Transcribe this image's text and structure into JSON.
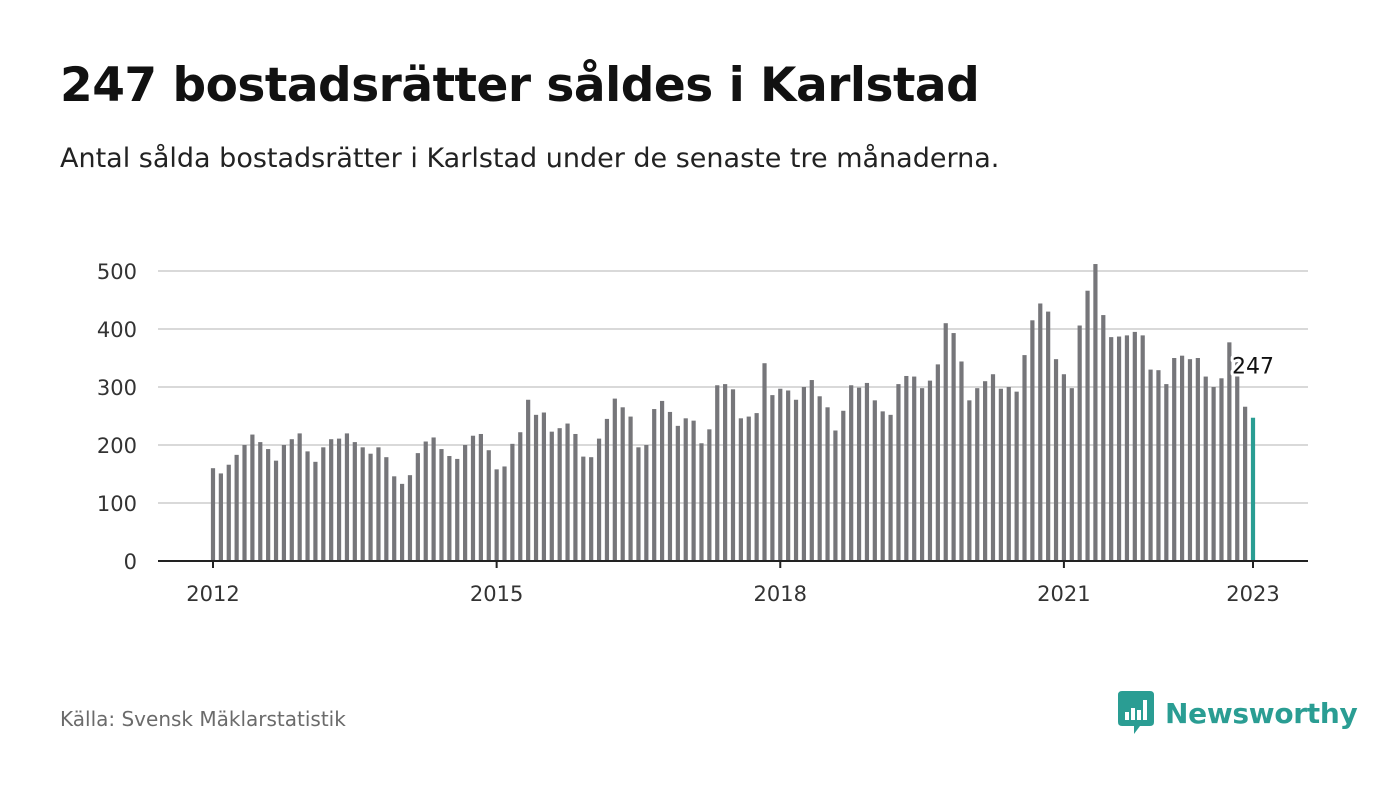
{
  "header": {
    "title": "247 bostadsrätter såldes i Karlstad",
    "subtitle": "Antal sålda bostadsrätter i Karlstad under de senaste tre månaderna."
  },
  "footer": {
    "source": "Källa: Svensk Mäklarstatistik",
    "brand": "Newsworthy",
    "brand_icon": "bar-chart-speech-bubble-icon"
  },
  "colors": {
    "bar": "#76767a",
    "highlight": "#2a9d93",
    "grid": "#d9d9d9",
    "axis": "#222222",
    "brand": "#2a9d93"
  },
  "chart_data": {
    "type": "bar",
    "x_start": "2012-01",
    "x_end": "2023-01",
    "frequency": "monthly",
    "ylim": [
      0,
      500
    ],
    "yticks": [
      0,
      100,
      200,
      300,
      400,
      500
    ],
    "xticks": [
      "2012",
      "2015",
      "2018",
      "2021",
      "2023"
    ],
    "grid": true,
    "highlight_last": true,
    "last_label": "247",
    "values": [
      160,
      151,
      166,
      183,
      200,
      218,
      205,
      193,
      173,
      200,
      210,
      220,
      189,
      171,
      196,
      210,
      211,
      220,
      205,
      196,
      185,
      196,
      179,
      146,
      133,
      148,
      186,
      206,
      213,
      193,
      181,
      176,
      200,
      216,
      219,
      191,
      158,
      163,
      202,
      222,
      278,
      252,
      256,
      223,
      229,
      237,
      219,
      180,
      179,
      211,
      245,
      280,
      265,
      249,
      196,
      200,
      262,
      276,
      257,
      233,
      246,
      242,
      203,
      227,
      303,
      305,
      296,
      246,
      249,
      255,
      341,
      286,
      297,
      294,
      278,
      300,
      312,
      284,
      265,
      225,
      259,
      303,
      299,
      307,
      277,
      258,
      252,
      305,
      319,
      318,
      298,
      311,
      339,
      410,
      393,
      344,
      277,
      298,
      310,
      322,
      297,
      300,
      292,
      355,
      415,
      444,
      430,
      348,
      322,
      298,
      406,
      466,
      512,
      424,
      386,
      387,
      389,
      395,
      389,
      330,
      329,
      305,
      350,
      354,
      348,
      350,
      318,
      300,
      315,
      377,
      343,
      266,
      247
    ]
  }
}
